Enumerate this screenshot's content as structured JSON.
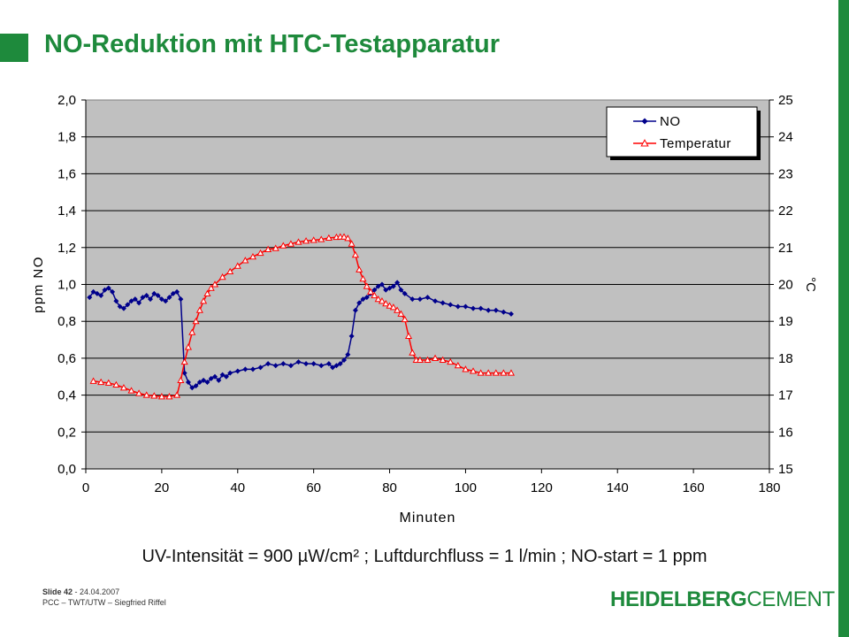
{
  "slide": {
    "title": "NO-Reduktion mit HTC-Testapparatur",
    "caption": "UV-Intensität = 900 µW/cm² ; Luftdurchfluss = 1 l/min ; NO-start = 1 ppm",
    "footer_slide": "Slide 42",
    "footer_date": " - 24.04.2007",
    "footer_line2": "PCC – TWT/UTW – Siegfried Riffel",
    "logo_part1": "HEIDELBERG",
    "logo_part2": "CEMENT",
    "accent_color": "#1e8a3c"
  },
  "chart_data": {
    "type": "line",
    "xlabel": "Minuten",
    "ylabel": "ppm NO",
    "y2label": "°C",
    "xlim": [
      0,
      180
    ],
    "ylim": [
      0,
      2.0
    ],
    "y2lim": [
      15,
      25
    ],
    "xticks": [
      "0",
      "20",
      "40",
      "60",
      "80",
      "100",
      "120",
      "140",
      "160",
      "180"
    ],
    "yticks": [
      "0,0",
      "0,2",
      "0,4",
      "0,6",
      "0,8",
      "1,0",
      "1,2",
      "1,4",
      "1,6",
      "1,8",
      "2,0"
    ],
    "y2ticks": [
      "15",
      "16",
      "17",
      "18",
      "19",
      "20",
      "21",
      "22",
      "23",
      "24",
      "25"
    ],
    "grid": true,
    "legend": "top-right",
    "plot_background": "#c0c0c0",
    "series": [
      {
        "name": "NO",
        "axis": "left",
        "color": "#00008b",
        "marker": "diamond",
        "x": [
          1,
          2,
          3,
          4,
          5,
          6,
          7,
          8,
          9,
          10,
          11,
          12,
          13,
          14,
          15,
          16,
          17,
          18,
          19,
          20,
          21,
          22,
          23,
          24,
          25,
          26,
          27,
          28,
          29,
          30,
          31,
          32,
          33,
          34,
          35,
          36,
          37,
          38,
          40,
          42,
          44,
          46,
          48,
          50,
          52,
          54,
          56,
          58,
          60,
          62,
          64,
          65,
          66,
          67,
          68,
          69,
          70,
          71,
          72,
          73,
          74,
          75,
          76,
          77,
          78,
          79,
          80,
          81,
          82,
          83,
          84,
          86,
          88,
          90,
          92,
          94,
          96,
          98,
          100,
          102,
          104,
          106,
          108,
          110,
          112
        ],
        "values": [
          0.93,
          0.96,
          0.95,
          0.94,
          0.97,
          0.98,
          0.96,
          0.91,
          0.88,
          0.87,
          0.89,
          0.91,
          0.92,
          0.9,
          0.93,
          0.94,
          0.92,
          0.95,
          0.94,
          0.92,
          0.91,
          0.93,
          0.95,
          0.96,
          0.92,
          0.52,
          0.47,
          0.44,
          0.45,
          0.47,
          0.48,
          0.47,
          0.49,
          0.5,
          0.48,
          0.51,
          0.5,
          0.52,
          0.53,
          0.54,
          0.54,
          0.55,
          0.57,
          0.56,
          0.57,
          0.56,
          0.58,
          0.57,
          0.57,
          0.56,
          0.57,
          0.55,
          0.56,
          0.57,
          0.59,
          0.62,
          0.72,
          0.86,
          0.9,
          0.92,
          0.93,
          0.95,
          0.97,
          0.99,
          1.0,
          0.97,
          0.98,
          0.99,
          1.01,
          0.97,
          0.95,
          0.92,
          0.92,
          0.93,
          0.91,
          0.9,
          0.89,
          0.88,
          0.88,
          0.87,
          0.87,
          0.86,
          0.86,
          0.85,
          0.84
        ]
      },
      {
        "name": "Temperatur",
        "axis": "right",
        "color": "#ff0000",
        "marker": "triangle",
        "x": [
          2,
          4,
          6,
          8,
          10,
          12,
          14,
          16,
          18,
          20,
          22,
          24,
          25,
          26,
          27,
          28,
          29,
          30,
          31,
          32,
          33,
          34,
          36,
          38,
          40,
          42,
          44,
          46,
          48,
          50,
          52,
          54,
          56,
          58,
          60,
          62,
          64,
          66,
          67,
          68,
          69,
          70,
          71,
          72,
          73,
          74,
          75,
          76,
          77,
          78,
          79,
          80,
          81,
          82,
          83,
          84,
          85,
          86,
          87,
          88,
          90,
          92,
          94,
          96,
          98,
          100,
          102,
          104,
          106,
          108,
          110,
          112
        ],
        "values": [
          17.38,
          17.35,
          17.33,
          17.28,
          17.2,
          17.12,
          17.05,
          17.0,
          16.98,
          16.96,
          16.96,
          17.0,
          17.4,
          17.9,
          18.3,
          18.7,
          19.0,
          19.3,
          19.55,
          19.75,
          19.9,
          20.0,
          20.2,
          20.35,
          20.5,
          20.65,
          20.75,
          20.85,
          20.95,
          20.98,
          21.05,
          21.1,
          21.15,
          21.18,
          21.2,
          21.22,
          21.26,
          21.28,
          21.29,
          21.29,
          21.25,
          21.1,
          20.8,
          20.4,
          20.15,
          19.95,
          19.8,
          19.7,
          19.6,
          19.55,
          19.48,
          19.42,
          19.38,
          19.3,
          19.2,
          19.05,
          18.6,
          18.15,
          17.95,
          17.95,
          17.95,
          18.0,
          17.95,
          17.9,
          17.8,
          17.7,
          17.65,
          17.6,
          17.6,
          17.6,
          17.6,
          17.6
        ]
      }
    ]
  }
}
